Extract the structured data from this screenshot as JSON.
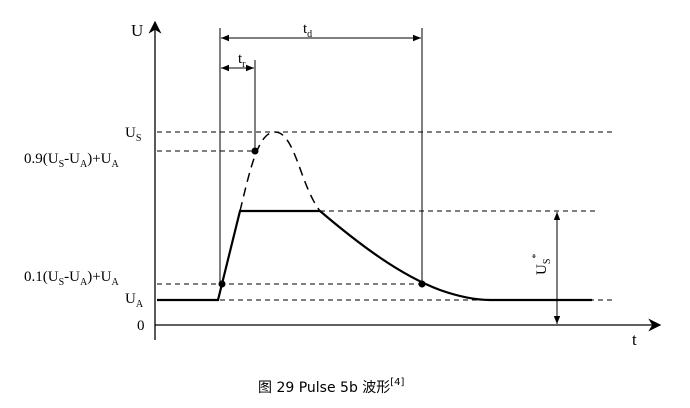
{
  "axes": {
    "y": "U",
    "x": "t",
    "origin": "0"
  },
  "intervals": {
    "td": [
      "t",
      "d"
    ],
    "tr": [
      "t",
      "r"
    ]
  },
  "levels": {
    "us": [
      "U",
      "S"
    ],
    "u90": [
      "0.9(U",
      "S",
      "-U",
      "A",
      ")+U",
      "A"
    ],
    "u10": [
      "0.1(U",
      "S",
      "-U",
      "A",
      ")+U",
      "A"
    ],
    "ua": [
      "U",
      "A"
    ],
    "us_star": [
      "U",
      "S",
      "*"
    ]
  },
  "caption": [
    "图 29 Pulse 5b 波形",
    "[4]"
  ]
}
